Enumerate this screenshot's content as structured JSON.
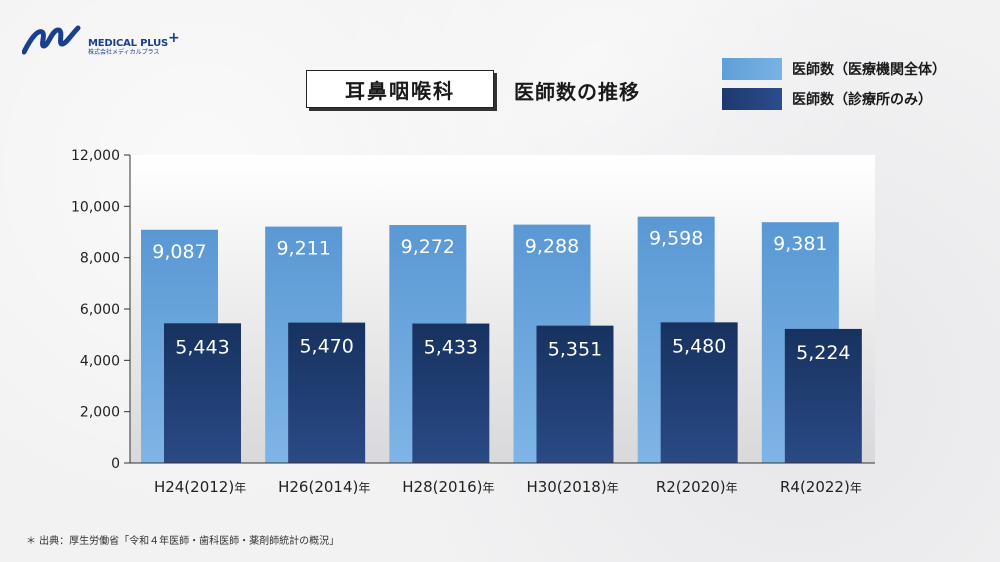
{
  "brand": {
    "name": "MEDICAL PLUS",
    "plus": "+",
    "sub": "株式会社メディカルプラス",
    "color": "#1b3f8f"
  },
  "header": {
    "title": "耳鼻咽喉科",
    "subtitle": "医師数の推移"
  },
  "legend": [
    {
      "label": "医師数（医療機関全体）",
      "color": "#5f9fd8"
    },
    {
      "label": "医師数（診療所のみ）",
      "color": "#1d3a6e"
    }
  ],
  "chart_data": {
    "type": "bar",
    "categories": [
      "H24(2012)",
      "H26(2014)",
      "H28(2016)",
      "H30(2018)",
      "R2(2020)",
      "R4(2022)"
    ],
    "category_suffix": "年",
    "series": [
      {
        "name": "医師数（医療機関全体）",
        "values": [
          9087,
          9211,
          9272,
          9288,
          9598,
          9381
        ],
        "labels": [
          "9,087",
          "9,211",
          "9,272",
          "9,288",
          "9,598",
          "9,381"
        ]
      },
      {
        "name": "医師数（診療所のみ）",
        "values": [
          5443,
          5470,
          5433,
          5351,
          5480,
          5224
        ],
        "labels": [
          "5,443",
          "5,470",
          "5,433",
          "5,351",
          "5,480",
          "5,224"
        ]
      }
    ],
    "ylim": [
      0,
      12000
    ],
    "yticks": [
      0,
      2000,
      4000,
      6000,
      8000,
      10000,
      12000
    ],
    "ytick_labels": [
      "0",
      "2,000",
      "4,000",
      "6,000",
      "8,000",
      "10,000",
      "12,000"
    ],
    "title": "耳鼻咽喉科 医師数の推移",
    "xlabel": "",
    "ylabel": ""
  },
  "footer": {
    "source": "＊ 出典：厚生労働省「令和４年医師・歯科医師・薬剤師統計の概況」"
  }
}
